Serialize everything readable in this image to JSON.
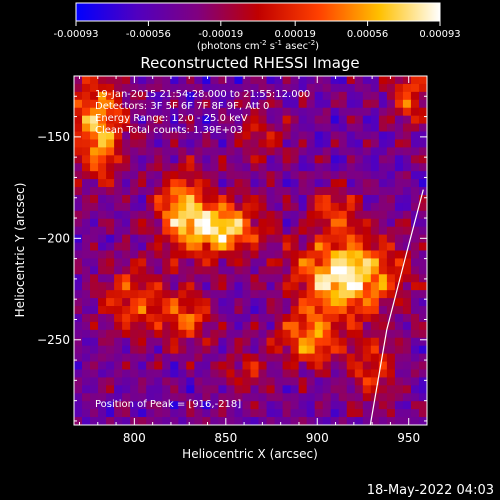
{
  "colorbar": {
    "tick_labels": [
      "-0.00093",
      "-0.00056",
      "-0.00019",
      "0.00019",
      "0.00056",
      "0.00093"
    ],
    "tick_values": [
      -0.00093,
      -0.00056,
      -0.00019,
      0.00019,
      0.00056,
      0.00093
    ],
    "range": [
      -0.00093,
      0.00093
    ],
    "colormap": [
      "#0000ff",
      "#5000c0",
      "#800080",
      "#c00000",
      "#ff4000",
      "#ffc000",
      "#ffffff"
    ]
  },
  "chart_data": {
    "type": "heatmap",
    "title": "Reconstructed RHESSI Image",
    "xlabel": "Heliocentric X (arcsec)",
    "ylabel": "Heliocentric Y (arcsec)",
    "xlim": [
      767,
      960
    ],
    "ylim": [
      -292,
      -120
    ],
    "x_ticks": [
      800,
      850,
      900,
      950
    ],
    "x_tick_labels": [
      "800",
      "850",
      "900",
      "950"
    ],
    "y_ticks": [
      -150,
      -200,
      -250
    ],
    "y_tick_labels": [
      "−150",
      "−200",
      "−250"
    ],
    "peak": [
      916,
      -218
    ],
    "info_lines": [
      "19-Jan-2015 21:54:28.000 to 21:55:12.000",
      "Detectors: 3F 5F 6F 7F 8F 9F, Att 0",
      "Energy Range: 12.0 - 25.0 keV",
      "Clean      Total counts: 1.39E+03"
    ],
    "peak_label": "Position of Peak = [916,-218]",
    "blobs": [
      {
        "x": 848,
        "y": -195,
        "amp": 1.0,
        "sx": 14,
        "sy": 10
      },
      {
        "x": 825,
        "y": -185,
        "amp": 0.75,
        "sx": 10,
        "sy": 14
      },
      {
        "x": 916,
        "y": -218,
        "amp": 1.1,
        "sx": 20,
        "sy": 14
      },
      {
        "x": 895,
        "y": -250,
        "amp": 0.7,
        "sx": 12,
        "sy": 10
      },
      {
        "x": 780,
        "y": -145,
        "amp": 0.9,
        "sx": 10,
        "sy": 18
      },
      {
        "x": 800,
        "y": -230,
        "amp": 0.6,
        "sx": 14,
        "sy": 12
      },
      {
        "x": 830,
        "y": -240,
        "amp": 0.55,
        "sx": 10,
        "sy": 10
      },
      {
        "x": 950,
        "y": -130,
        "amp": 0.6,
        "sx": 8,
        "sy": 10
      },
      {
        "x": 930,
        "y": -265,
        "amp": 0.5,
        "sx": 10,
        "sy": 12
      },
      {
        "x": 910,
        "y": -185,
        "amp": 0.45,
        "sx": 10,
        "sy": 8
      },
      {
        "x": 870,
        "y": -150,
        "amp": 0.35,
        "sx": 12,
        "sy": 10
      },
      {
        "x": 860,
        "y": -265,
        "amp": 0.35,
        "sx": 10,
        "sy": 8
      }
    ],
    "limb_points": [
      [
        958,
        -176
      ],
      [
        948,
        -210
      ],
      [
        938,
        -245
      ],
      [
        929,
        -292
      ]
    ]
  },
  "footer": {
    "timestamp": "18-May-2022 04:03"
  }
}
